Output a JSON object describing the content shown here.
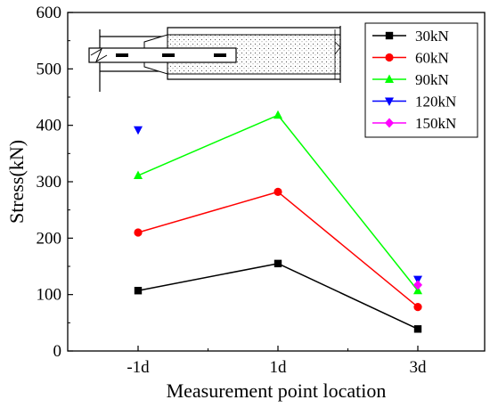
{
  "chart_data": {
    "type": "line",
    "title": "",
    "xlabel": "Measurement point location",
    "ylabel": "Stress(kN)",
    "categories": [
      "-1d",
      "1d",
      "3d"
    ],
    "ylim": [
      0,
      600
    ],
    "yticks": [
      0,
      100,
      200,
      300,
      400,
      500,
      600
    ],
    "grid": false,
    "legend_position": "top-right",
    "series": [
      {
        "name": "30kN",
        "values": [
          107,
          155,
          39
        ],
        "color": "#000000",
        "marker": "square"
      },
      {
        "name": "60kN",
        "values": [
          210,
          282,
          78
        ],
        "color": "#ff0000",
        "marker": "circle"
      },
      {
        "name": "90kN",
        "values": [
          311,
          418,
          107
        ],
        "color": "#00ff00",
        "marker": "triangle-up"
      },
      {
        "name": "120kN",
        "values": [
          392,
          null,
          127
        ],
        "color": "#0000ff",
        "marker": "triangle-down"
      },
      {
        "name": "150kN",
        "values": [
          null,
          null,
          117
        ],
        "color": "#ff00ff",
        "marker": "diamond"
      }
    ],
    "inset_diagram": "rebar-anchorage-in-concrete-schematic"
  }
}
